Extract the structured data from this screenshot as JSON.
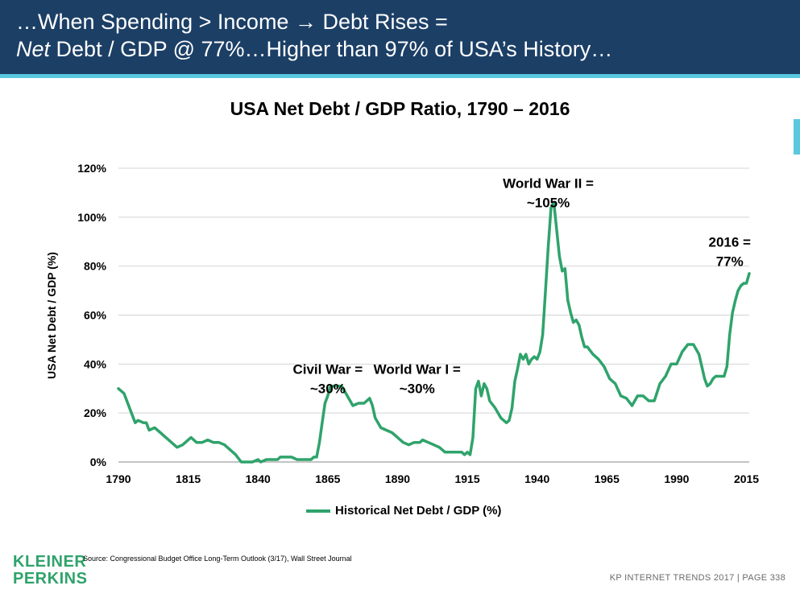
{
  "header": {
    "line1": "…When Spending > Income → Debt Rises =",
    "line2_italic": "Net",
    "line2_rest": " Debt / GDP @ 77%…Higher than 97% of USA’s History…"
  },
  "chart_data": {
    "type": "line",
    "title": "USA Net Debt / GDP Ratio, 1790 – 2016",
    "xlabel": "",
    "ylabel": "USA Net Debt / GDP (%)",
    "xlim": [
      1790,
      2016
    ],
    "ylim": [
      0,
      120
    ],
    "x_ticks": [
      "1790",
      "1815",
      "1840",
      "1865",
      "1890",
      "1915",
      "1940",
      "1965",
      "1990",
      "2015"
    ],
    "y_ticks": [
      "0%",
      "20%",
      "40%",
      "60%",
      "80%",
      "100%",
      "120%"
    ],
    "grid": "horizontal",
    "legend": "bottom",
    "series": [
      {
        "name": "Historical Net Debt / GDP (%)",
        "color": "#2fa36b",
        "points": [
          [
            1790,
            30
          ],
          [
            1792,
            28
          ],
          [
            1794,
            22
          ],
          [
            1796,
            16
          ],
          [
            1797,
            17
          ],
          [
            1799,
            16
          ],
          [
            1800,
            16
          ],
          [
            1801,
            13
          ],
          [
            1803,
            14
          ],
          [
            1805,
            12
          ],
          [
            1807,
            10
          ],
          [
            1809,
            8
          ],
          [
            1811,
            6
          ],
          [
            1813,
            7
          ],
          [
            1815,
            9
          ],
          [
            1816,
            10
          ],
          [
            1818,
            8
          ],
          [
            1820,
            8
          ],
          [
            1822,
            9
          ],
          [
            1824,
            8
          ],
          [
            1826,
            8
          ],
          [
            1828,
            7
          ],
          [
            1830,
            5
          ],
          [
            1832,
            3
          ],
          [
            1834,
            0
          ],
          [
            1836,
            0
          ],
          [
            1838,
            0
          ],
          [
            1840,
            1
          ],
          [
            1841,
            0
          ],
          [
            1843,
            1
          ],
          [
            1845,
            1
          ],
          [
            1847,
            1
          ],
          [
            1848,
            2
          ],
          [
            1850,
            2
          ],
          [
            1852,
            2
          ],
          [
            1854,
            1
          ],
          [
            1856,
            1
          ],
          [
            1858,
            1
          ],
          [
            1859,
            1
          ],
          [
            1860,
            2
          ],
          [
            1861,
            2
          ],
          [
            1862,
            8
          ],
          [
            1863,
            16
          ],
          [
            1864,
            24
          ],
          [
            1865,
            27
          ],
          [
            1866,
            31
          ],
          [
            1868,
            31
          ],
          [
            1870,
            31
          ],
          [
            1872,
            27
          ],
          [
            1874,
            23
          ],
          [
            1876,
            24
          ],
          [
            1878,
            24
          ],
          [
            1880,
            26
          ],
          [
            1881,
            23
          ],
          [
            1882,
            18
          ],
          [
            1884,
            14
          ],
          [
            1886,
            13
          ],
          [
            1888,
            12
          ],
          [
            1890,
            10
          ],
          [
            1892,
            8
          ],
          [
            1894,
            7
          ],
          [
            1896,
            8
          ],
          [
            1898,
            8
          ],
          [
            1899,
            9
          ],
          [
            1901,
            8
          ],
          [
            1903,
            7
          ],
          [
            1905,
            6
          ],
          [
            1907,
            4
          ],
          [
            1909,
            4
          ],
          [
            1911,
            4
          ],
          [
            1913,
            4
          ],
          [
            1914,
            3
          ],
          [
            1915,
            4
          ],
          [
            1916,
            3
          ],
          [
            1917,
            10
          ],
          [
            1918,
            30
          ],
          [
            1919,
            33
          ],
          [
            1920,
            27
          ],
          [
            1921,
            32
          ],
          [
            1922,
            30
          ],
          [
            1923,
            25
          ],
          [
            1925,
            22
          ],
          [
            1927,
            18
          ],
          [
            1929,
            16
          ],
          [
            1930,
            17
          ],
          [
            1931,
            22
          ],
          [
            1932,
            33
          ],
          [
            1933,
            38
          ],
          [
            1934,
            44
          ],
          [
            1935,
            42
          ],
          [
            1936,
            44
          ],
          [
            1937,
            40
          ],
          [
            1938,
            42
          ],
          [
            1939,
            43
          ],
          [
            1940,
            42
          ],
          [
            1941,
            45
          ],
          [
            1942,
            52
          ],
          [
            1943,
            70
          ],
          [
            1944,
            88
          ],
          [
            1945,
            104
          ],
          [
            1946,
            106
          ],
          [
            1947,
            95
          ],
          [
            1948,
            84
          ],
          [
            1949,
            78
          ],
          [
            1950,
            79
          ],
          [
            1951,
            66
          ],
          [
            1952,
            61
          ],
          [
            1953,
            57
          ],
          [
            1954,
            58
          ],
          [
            1955,
            56
          ],
          [
            1956,
            51
          ],
          [
            1957,
            47
          ],
          [
            1958,
            47
          ],
          [
            1960,
            44
          ],
          [
            1962,
            42
          ],
          [
            1964,
            39
          ],
          [
            1966,
            34
          ],
          [
            1968,
            32
          ],
          [
            1970,
            27
          ],
          [
            1972,
            26
          ],
          [
            1974,
            23
          ],
          [
            1976,
            27
          ],
          [
            1978,
            27
          ],
          [
            1980,
            25
          ],
          [
            1982,
            25
          ],
          [
            1984,
            32
          ],
          [
            1986,
            35
          ],
          [
            1988,
            40
          ],
          [
            1990,
            40
          ],
          [
            1992,
            45
          ],
          [
            1994,
            48
          ],
          [
            1996,
            48
          ],
          [
            1998,
            44
          ],
          [
            2000,
            34
          ],
          [
            2001,
            31
          ],
          [
            2002,
            32
          ],
          [
            2003,
            34
          ],
          [
            2004,
            35
          ],
          [
            2005,
            35
          ],
          [
            2006,
            35
          ],
          [
            2007,
            35
          ],
          [
            2008,
            39
          ],
          [
            2009,
            52
          ],
          [
            2010,
            61
          ],
          [
            2011,
            66
          ],
          [
            2012,
            70
          ],
          [
            2013,
            72
          ],
          [
            2014,
            73
          ],
          [
            2015,
            73
          ],
          [
            2016,
            77
          ]
        ]
      }
    ],
    "annotations": [
      {
        "lines": [
          "Civil War =",
          "~30%"
        ],
        "x": 1865,
        "y": 36
      },
      {
        "lines": [
          "World War I =",
          "~30%"
        ],
        "x": 1897,
        "y": 36
      },
      {
        "lines": [
          "World War II =",
          "~105%"
        ],
        "x": 1944,
        "y": 112
      },
      {
        "lines": [
          "2016 =",
          "77%"
        ],
        "x": 2009,
        "y": 88
      }
    ]
  },
  "source": "Source: Congressional Budget Office Long-Term Outlook (3/17), Wall Street Journal",
  "logo": {
    "line1": "KLEINER",
    "line2": "PERKINS",
    "color": "#2fa36b"
  },
  "footer": "KP INTERNET TRENDS 2017   |   PAGE 338"
}
